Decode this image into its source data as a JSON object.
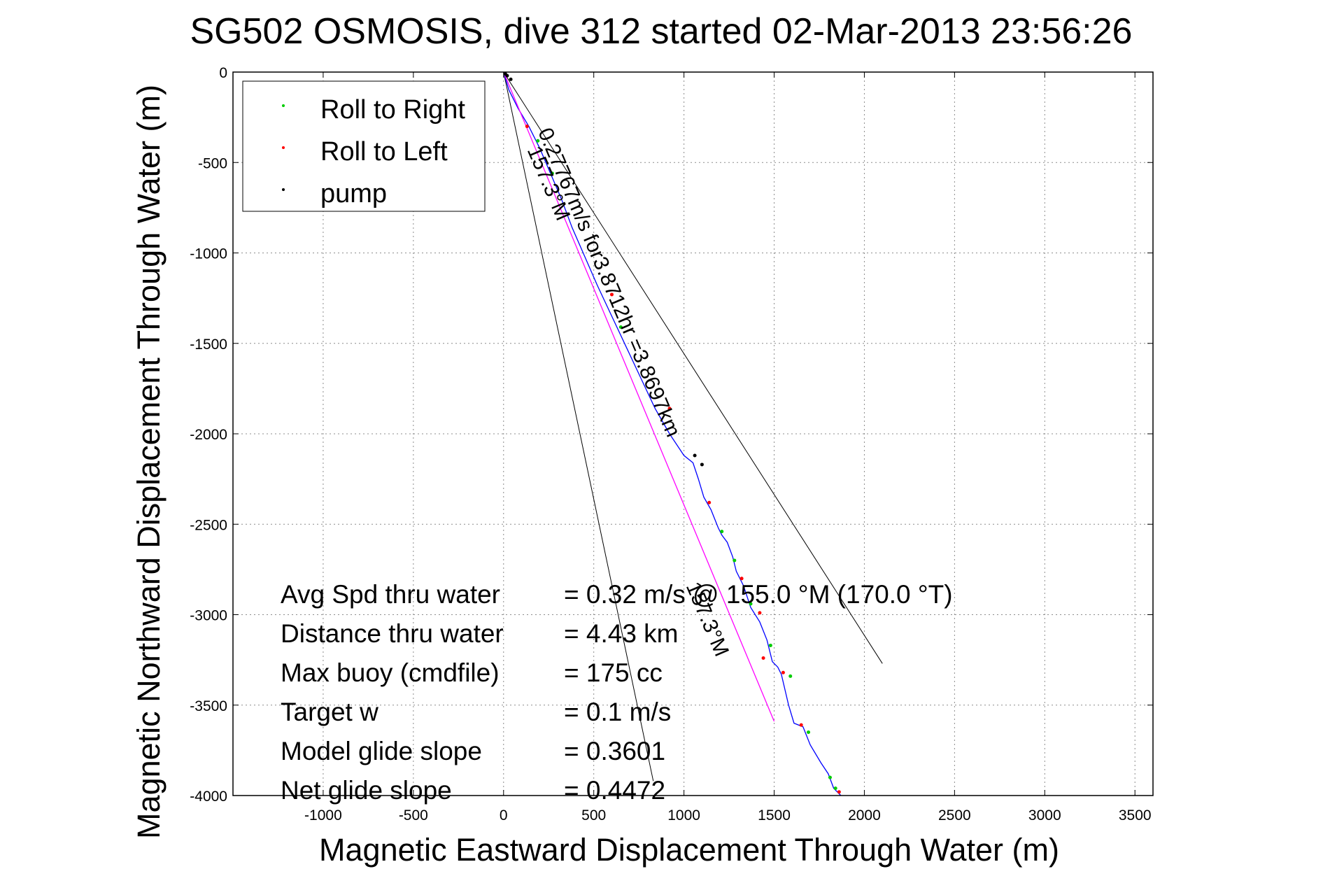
{
  "chart_data": {
    "type": "line",
    "title": "SG502 OSMOSIS, dive 312 started 02-Mar-2013 23:56:26",
    "xlabel": "Magnetic Eastward Displacement Through Water (m)",
    "ylabel": "Magnetic Northward Displacement Through Water (m)",
    "xlim": [
      -1500,
      3600
    ],
    "ylim": [
      -4000,
      0
    ],
    "xticks": [
      -1000,
      -500,
      0,
      500,
      1000,
      1500,
      2000,
      2500,
      3000,
      3500
    ],
    "yticks": [
      0,
      -500,
      -1000,
      -1500,
      -2000,
      -2500,
      -3000,
      -3500,
      -4000
    ],
    "grid": true,
    "legend": {
      "placement": "top-left",
      "entries": [
        {
          "label": "Roll to Right",
          "color": "#00cc00"
        },
        {
          "label": "Roll to Left",
          "color": "#ff0000"
        },
        {
          "label": "pump",
          "color": "#000000"
        }
      ]
    },
    "series": [
      {
        "name": "track",
        "color": "#0000ff",
        "x": [
          0,
          30,
          80,
          140,
          200,
          260,
          320,
          380,
          450,
          520,
          600,
          680,
          760,
          840,
          920,
          1000,
          1050,
          1080,
          1110,
          1150,
          1190,
          1210,
          1240,
          1270,
          1290,
          1330,
          1370,
          1420,
          1460,
          1490,
          1520,
          1540,
          1580,
          1610,
          1660,
          1700,
          1760,
          1800,
          1830,
          1870
        ],
        "y": [
          0,
          -100,
          -200,
          -300,
          -420,
          -560,
          -700,
          -860,
          -1020,
          -1180,
          -1350,
          -1520,
          -1690,
          -1860,
          -2000,
          -2120,
          -2160,
          -2250,
          -2350,
          -2420,
          -2520,
          -2560,
          -2600,
          -2680,
          -2760,
          -2840,
          -2960,
          -3040,
          -3140,
          -3260,
          -3290,
          -3330,
          -3500,
          -3600,
          -3620,
          -3720,
          -3820,
          -3880,
          -3960,
          -4000
        ]
      },
      {
        "name": "fit",
        "color": "#ff00ff",
        "x": [
          0,
          1500
        ],
        "y": [
          0,
          -3590
        ]
      }
    ],
    "markers": {
      "roll_right": {
        "color": "#00cc00",
        "x": [
          190,
          270,
          650,
          1210,
          1280,
          1370,
          1480,
          1590,
          1690,
          1810,
          1840
        ],
        "y": [
          -380,
          -560,
          -1410,
          -2540,
          -2700,
          -2940,
          -3170,
          -3340,
          -3650,
          -3900,
          -3960
        ]
      },
      "roll_left": {
        "color": "#ff0000",
        "x": [
          130,
          600,
          920,
          1140,
          1320,
          1420,
          1440,
          1550,
          1650,
          1860
        ],
        "y": [
          -300,
          -1230,
          -1860,
          -2380,
          -2800,
          -2990,
          -3240,
          -3320,
          -3610,
          -3980
        ]
      },
      "pump": {
        "color": "#000000",
        "x": [
          10,
          20,
          40,
          1060,
          1100
        ],
        "y": [
          -10,
          -20,
          -40,
          -2120,
          -2170
        ]
      }
    },
    "reference_lines": [
      {
        "x": [
          0,
          830
        ],
        "y": [
          0,
          -3920
        ]
      },
      {
        "x": [
          0,
          2100
        ],
        "y": [
          0,
          -3270
        ]
      }
    ],
    "annotations": [
      {
        "text": "157.3°M",
        "x": 130,
        "y": -430,
        "angle": 67
      },
      {
        "text": "0.27767m/s for3.8712hr =3.8697km",
        "x": 190,
        "y": -330,
        "angle": 67
      },
      {
        "text": "157.3°M",
        "x": 1010,
        "y": -2840,
        "angle": 67
      }
    ],
    "stats": [
      {
        "label": "Avg Spd thru water",
        "value": "=  0.32 m/s @ 155.0 °M (170.0 °T)"
      },
      {
        "label": "Distance thru water",
        "value": "=  4.43 km"
      },
      {
        "label": "Max buoy (cmdfile)",
        "value": "= 175 cc"
      },
      {
        "label": "Target w",
        "value": "= 0.1 m/s"
      },
      {
        "label": "Model glide slope",
        "value": "= 0.3601"
      },
      {
        "label": "Net glide slope",
        "value": "= 0.4472"
      }
    ]
  }
}
